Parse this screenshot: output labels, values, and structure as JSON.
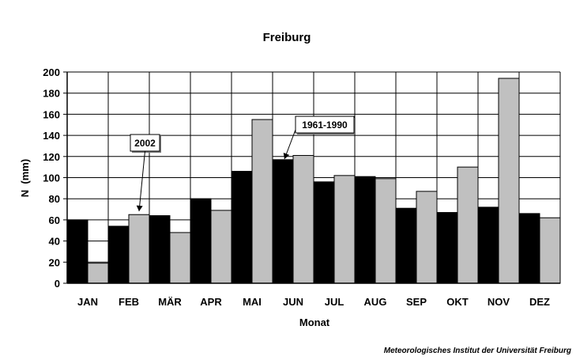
{
  "chart_data": {
    "type": "bar",
    "title": "Freiburg",
    "xlabel": "Monat",
    "ylabel": "N  (mm)",
    "ylim": [
      0,
      200
    ],
    "yticks": [
      0,
      20,
      40,
      60,
      80,
      100,
      120,
      140,
      160,
      180,
      200
    ],
    "grid": true,
    "categories": [
      "JAN",
      "FEB",
      "MÄR",
      "APR",
      "MAI",
      "JUN",
      "JUL",
      "AUG",
      "SEP",
      "OKT",
      "NOV",
      "DEZ"
    ],
    "series": [
      {
        "name": "1961-1990",
        "color": "#000000",
        "values": [
          60,
          54,
          64,
          80,
          106,
          117,
          96,
          101,
          71,
          67,
          72,
          66
        ]
      },
      {
        "name": "2002",
        "color": "#c0c0c0",
        "values": [
          19,
          65,
          48,
          69,
          155,
          121,
          102,
          99,
          87,
          110,
          194,
          62
        ]
      }
    ],
    "annotations": [
      {
        "text": "2002",
        "series": "2002",
        "category": "FEB"
      },
      {
        "text": "1961-1990",
        "series": "1961-1990",
        "category": "JUN"
      }
    ]
  },
  "credit": "Meteorologisches Institut der Universität Freiburg"
}
